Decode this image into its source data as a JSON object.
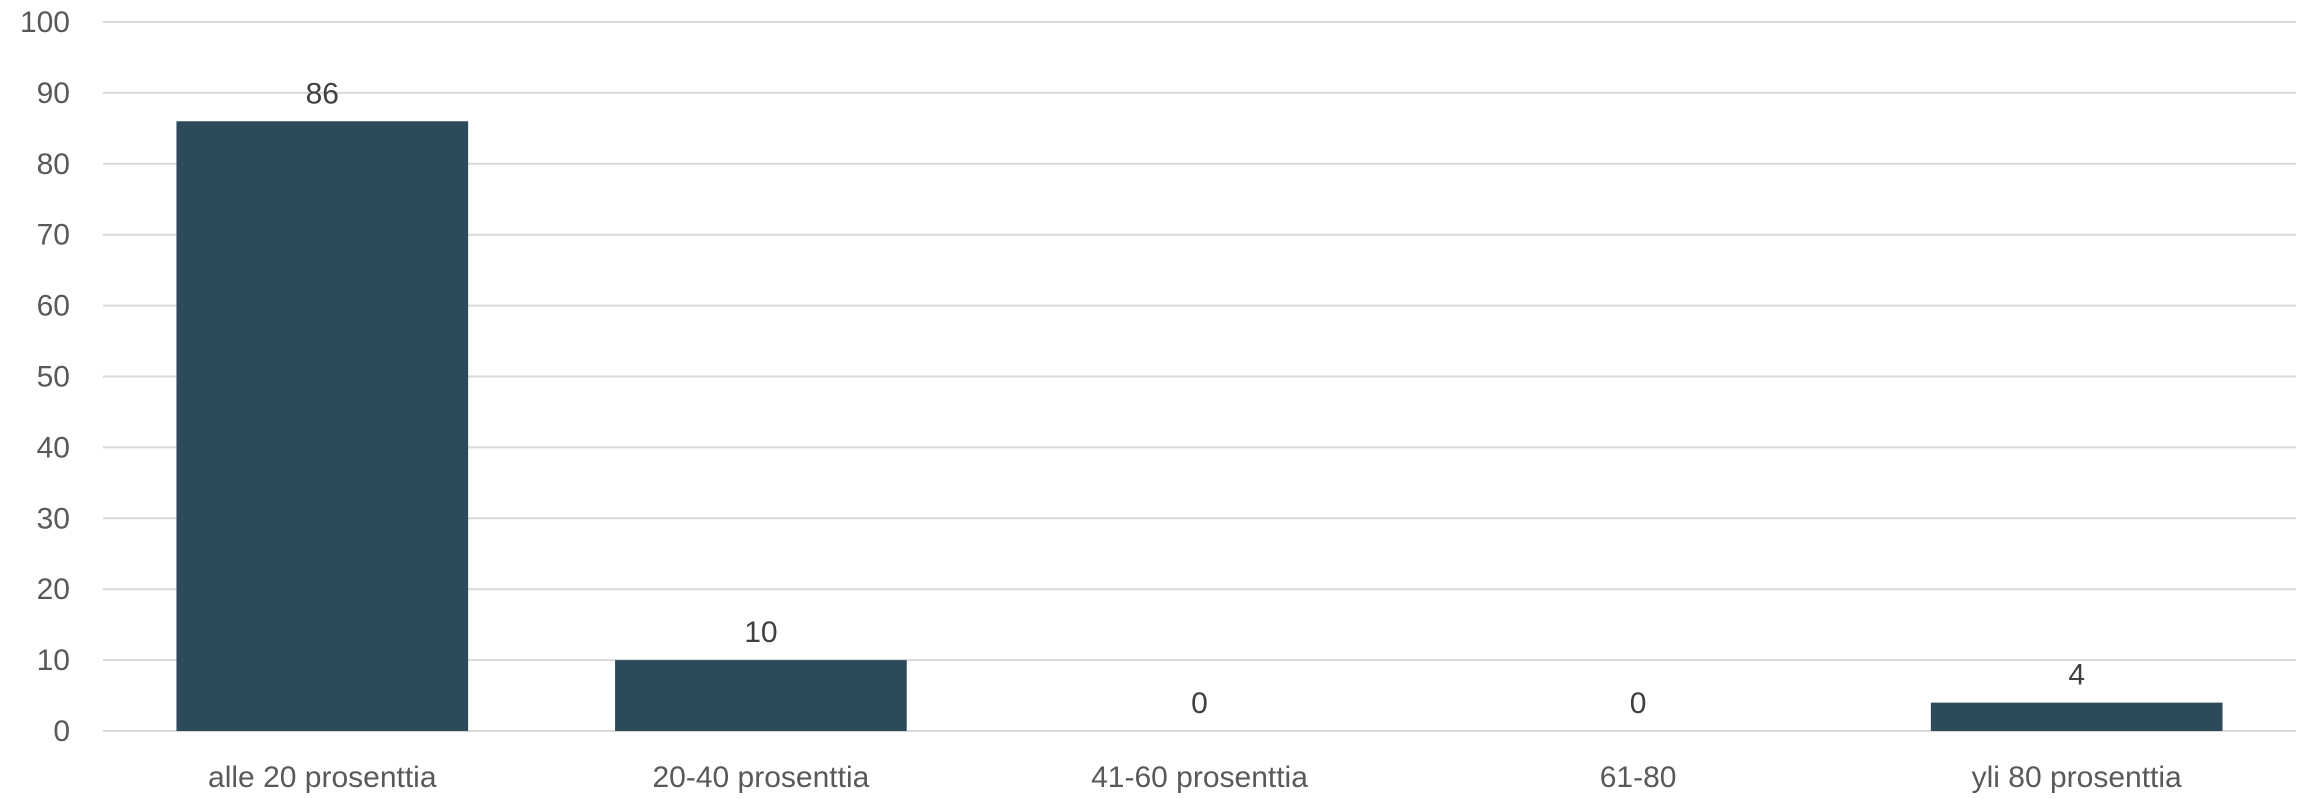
{
  "chart_data": {
    "type": "bar",
    "title": "",
    "xlabel": "",
    "ylabel": "",
    "categories": [
      "alle 20 prosenttia",
      "20-40 prosenttia",
      "41-60 prosenttia",
      "61-80",
      "yli 80 prosenttia"
    ],
    "values": [
      86,
      10,
      0,
      0,
      4
    ],
    "data_labels": [
      "86",
      "10",
      "0",
      "0",
      "4"
    ],
    "ylim": [
      0,
      100
    ],
    "yticks": [
      "0",
      "10",
      "20",
      "30",
      "40",
      "50",
      "60",
      "70",
      "80",
      "90",
      "100"
    ],
    "grid": true,
    "legend": "none",
    "colors": {
      "bar": "#2d4a5a",
      "grid": "#d9d9d9",
      "tick_text": "#595959",
      "label_text": "#404040"
    }
  }
}
